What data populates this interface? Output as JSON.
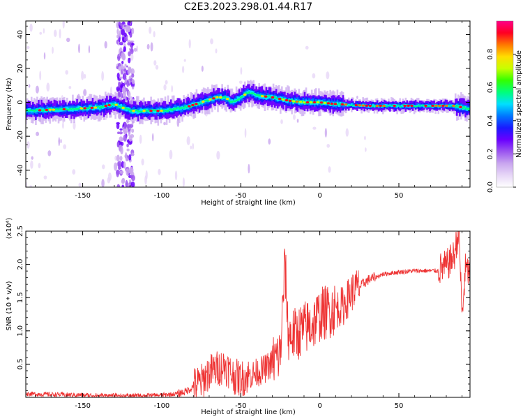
{
  "title": "C2E3.2023.298.01.44.R17",
  "colors": {
    "snr_line": "#ee3333",
    "axis": "#000000",
    "colormap": [
      "#ffffff",
      "#e7d7f7",
      "#c9a6ef",
      "#9b55f0",
      "#6a00ff",
      "#1a1aff",
      "#0077ff",
      "#00e0ff",
      "#00ff7a",
      "#33ff00",
      "#c8ff00",
      "#ffdd00",
      "#ff7700",
      "#ff0022",
      "#ff0088"
    ]
  },
  "chart_data": [
    {
      "type": "heatmap",
      "title": "",
      "xlabel": "Height of straight line (km)",
      "ylabel": "Frequency (Hz)",
      "xlim": [
        -186,
        95
      ],
      "ylim": [
        -50,
        48
      ],
      "xticks": [
        "-150",
        "-100",
        "-50",
        "0",
        "50"
      ],
      "xtick_values": [
        -150,
        -100,
        -50,
        0,
        50
      ],
      "yticks": [
        "-40",
        "-20",
        "0",
        "20",
        "40"
      ],
      "ytick_values": [
        -40,
        -20,
        0,
        20,
        40
      ],
      "colorbar": {
        "label": "Normalized spectral amplitude",
        "range": [
          0,
          1
        ],
        "ticks": [
          "0.0",
          "0.2",
          "0.4",
          "0.6",
          "0.8"
        ],
        "tick_values": [
          0.0,
          0.2,
          0.4,
          0.6,
          0.8
        ]
      },
      "ridge_center_hz": {
        "x": [
          -186,
          -160,
          -140,
          -130,
          -120,
          -100,
          -85,
          -75,
          -65,
          -60,
          -55,
          -50,
          -45,
          -40,
          -30,
          -20,
          -10,
          0,
          10,
          30,
          50,
          70,
          85,
          95
        ],
        "y": [
          -5,
          -4,
          -3,
          -1,
          -5,
          -5,
          -3,
          0,
          3,
          3,
          0,
          3,
          6,
          4,
          3,
          1,
          0,
          0,
          -1,
          -2,
          -2,
          -2,
          -2,
          -4
        ]
      },
      "noise_column_km": [
        -128,
        -118
      ]
    },
    {
      "type": "line",
      "title": "",
      "xlabel": "Height of straight line (km)",
      "ylabel": "SNR (10 * v/v)",
      "y_multiplier": "(x10⁴)",
      "xlim": [
        -186,
        95
      ],
      "ylim": [
        0,
        2.5
      ],
      "xticks": [
        "-150",
        "-100",
        "-50",
        "0",
        "50"
      ],
      "xtick_values": [
        -150,
        -100,
        -50,
        0,
        50
      ],
      "yticks": [
        "0.5",
        "1.0",
        "1.5",
        "2.0",
        "2.5"
      ],
      "ytick_values": [
        0.5,
        1.0,
        1.5,
        2.0,
        2.5
      ],
      "series": [
        {
          "x": [
            -186,
            -170,
            -150,
            -130,
            -110,
            -100,
            -90,
            -85,
            -80,
            -75,
            -70,
            -65,
            -60,
            -55,
            -50,
            -45,
            -40,
            -35,
            -30,
            -25,
            -22,
            -20,
            -15,
            -10,
            -5,
            0,
            5,
            10,
            15,
            20,
            25,
            30,
            40,
            50,
            60,
            70,
            75,
            80,
            85,
            88,
            90,
            92,
            95
          ],
          "y": [
            0.05,
            0.04,
            0.03,
            0.02,
            0.02,
            0.03,
            0.05,
            0.08,
            0.15,
            0.2,
            0.35,
            0.4,
            0.45,
            0.3,
            0.25,
            0.3,
            0.35,
            0.4,
            0.5,
            0.6,
            2.0,
            0.9,
            0.9,
            1.0,
            1.05,
            1.2,
            1.25,
            1.3,
            1.35,
            1.55,
            1.65,
            1.75,
            1.85,
            1.88,
            1.9,
            1.9,
            1.9,
            1.95,
            2.1,
            2.5,
            1.15,
            1.9,
            1.85
          ]
        }
      ]
    }
  ]
}
